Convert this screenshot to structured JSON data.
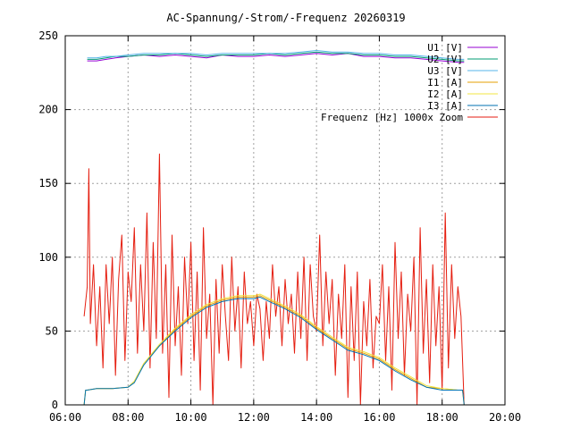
{
  "chart_data": {
    "type": "line",
    "title": "AC-Spannung/-Strom/-Frequenz 20260319",
    "xlabel": "",
    "ylabel": "",
    "xlim": [
      6,
      20
    ],
    "ylim": [
      0,
      250
    ],
    "grid": true,
    "legend_position": "top-right",
    "x_ticks": [
      {
        "value": 6,
        "label": "06:00"
      },
      {
        "value": 8,
        "label": "08:00"
      },
      {
        "value": 10,
        "label": "10:00"
      },
      {
        "value": 12,
        "label": "12:00"
      },
      {
        "value": 14,
        "label": "14:00"
      },
      {
        "value": 16,
        "label": "16:00"
      },
      {
        "value": 18,
        "label": "18:00"
      },
      {
        "value": 20,
        "label": "20:00"
      }
    ],
    "y_ticks": [
      {
        "value": 0,
        "label": "0"
      },
      {
        "value": 50,
        "label": "50"
      },
      {
        "value": 100,
        "label": "100"
      },
      {
        "value": 150,
        "label": "150"
      },
      {
        "value": 200,
        "label": "200"
      },
      {
        "value": 250,
        "label": "250"
      }
    ],
    "series": [
      {
        "name": "U1 [V]",
        "color": "#9400d3",
        "group": "voltage",
        "x": [
          6.7,
          7.0,
          7.3,
          7.6,
          8.0,
          8.5,
          9.0,
          9.5,
          10.0,
          10.5,
          11.0,
          11.5,
          12.0,
          12.5,
          13.0,
          13.5,
          14.0,
          14.5,
          15.0,
          15.5,
          16.0,
          16.5,
          17.0,
          17.5,
          18.0,
          18.5,
          18.7
        ],
        "values": [
          233,
          233,
          234,
          235,
          236,
          237,
          236,
          237,
          236,
          235,
          237,
          236,
          236,
          237,
          236,
          237,
          238,
          237,
          238,
          236,
          236,
          235,
          235,
          234,
          233,
          232,
          232
        ]
      },
      {
        "name": "U2 [V]",
        "color": "#009e73",
        "group": "voltage",
        "x": [
          6.7,
          7.0,
          7.3,
          7.6,
          8.0,
          8.5,
          9.0,
          9.5,
          10.0,
          10.5,
          11.0,
          11.5,
          12.0,
          12.5,
          13.0,
          13.5,
          14.0,
          14.5,
          15.0,
          15.5,
          16.0,
          16.5,
          17.0,
          17.5,
          18.0,
          18.5,
          18.7
        ],
        "values": [
          234,
          234,
          235,
          236,
          236,
          237,
          237,
          238,
          237,
          236,
          237,
          237,
          237,
          238,
          237,
          238,
          239,
          238,
          238,
          237,
          237,
          236,
          236,
          235,
          234,
          233,
          233
        ]
      },
      {
        "name": "U3 [V]",
        "color": "#56b4e9",
        "group": "voltage",
        "x": [
          6.7,
          7.0,
          7.3,
          7.6,
          8.0,
          8.5,
          9.0,
          9.5,
          10.0,
          10.5,
          11.0,
          11.5,
          12.0,
          12.5,
          13.0,
          13.5,
          14.0,
          14.5,
          15.0,
          15.5,
          16.0,
          16.5,
          17.0,
          17.5,
          18.0,
          18.5,
          18.7
        ],
        "values": [
          235,
          235,
          236,
          236,
          237,
          238,
          238,
          238,
          238,
          237,
          238,
          238,
          238,
          238,
          238,
          239,
          240,
          239,
          239,
          238,
          238,
          237,
          237,
          236,
          235,
          234,
          234
        ]
      },
      {
        "name": "I1 [A]",
        "color": "#e69f00",
        "group": "current",
        "x": [
          6.6,
          6.65,
          6.7,
          7.0,
          7.5,
          8.0,
          8.2,
          8.5,
          9.0,
          9.5,
          10.0,
          10.5,
          11.0,
          11.5,
          12.0,
          12.2,
          12.5,
          13.0,
          13.5,
          14.0,
          14.5,
          15.0,
          15.5,
          16.0,
          16.5,
          17.0,
          17.5,
          18.0,
          18.5,
          18.65,
          18.7
        ],
        "values": [
          0,
          10,
          10,
          11,
          11,
          12,
          16,
          28,
          40,
          51,
          60,
          67,
          71,
          73,
          73,
          74,
          71,
          66,
          60,
          52,
          45,
          38,
          35,
          31,
          24,
          18,
          12,
          11,
          10,
          10,
          0
        ]
      },
      {
        "name": "I2 [A]",
        "color": "#f0e442",
        "group": "current",
        "x": [
          6.6,
          6.65,
          6.7,
          7.0,
          7.5,
          8.0,
          8.2,
          8.5,
          9.0,
          9.5,
          10.0,
          10.5,
          11.0,
          11.5,
          12.0,
          12.2,
          12.5,
          13.0,
          13.5,
          14.0,
          14.5,
          15.0,
          15.5,
          16.0,
          16.5,
          17.0,
          17.5,
          18.0,
          18.5,
          18.65,
          18.7
        ],
        "values": [
          0,
          10,
          10,
          11,
          11,
          12,
          16,
          28,
          41,
          52,
          61,
          68,
          72,
          74,
          74,
          75,
          72,
          67,
          61,
          53,
          46,
          39,
          36,
          32,
          25,
          19,
          13,
          11,
          10,
          10,
          0
        ]
      },
      {
        "name": "I3 [A]",
        "color": "#0072b2",
        "group": "current",
        "x": [
          6.6,
          6.65,
          6.7,
          7.0,
          7.5,
          8.0,
          8.2,
          8.5,
          9.0,
          9.5,
          10.0,
          10.5,
          11.0,
          11.5,
          12.0,
          12.2,
          12.5,
          13.0,
          13.5,
          14.0,
          14.5,
          15.0,
          15.5,
          16.0,
          16.5,
          17.0,
          17.5,
          18.0,
          18.5,
          18.65,
          18.7
        ],
        "values": [
          0,
          10,
          10,
          11,
          11,
          12,
          15,
          27,
          40,
          50,
          59,
          66,
          70,
          72,
          72,
          73,
          70,
          65,
          59,
          51,
          44,
          37,
          34,
          30,
          23,
          17,
          12,
          10,
          10,
          10,
          0
        ]
      },
      {
        "name": "Frequenz [Hz] 1000x Zoom",
        "color": "#e51e10",
        "group": "frequency",
        "x": [
          6.6,
          6.7,
          6.75,
          6.8,
          6.9,
          7.0,
          7.1,
          7.2,
          7.3,
          7.4,
          7.5,
          7.6,
          7.7,
          7.8,
          7.9,
          8.0,
          8.1,
          8.2,
          8.3,
          8.4,
          8.5,
          8.6,
          8.7,
          8.8,
          8.9,
          9.0,
          9.1,
          9.2,
          9.3,
          9.4,
          9.5,
          9.6,
          9.7,
          9.8,
          9.9,
          10.0,
          10.1,
          10.2,
          10.3,
          10.4,
          10.5,
          10.6,
          10.7,
          10.8,
          10.9,
          11.0,
          11.1,
          11.2,
          11.3,
          11.4,
          11.5,
          11.6,
          11.7,
          11.8,
          11.9,
          12.0,
          12.1,
          12.2,
          12.3,
          12.4,
          12.5,
          12.6,
          12.7,
          12.8,
          12.9,
          13.0,
          13.1,
          13.2,
          13.3,
          13.4,
          13.5,
          13.6,
          13.7,
          13.8,
          13.9,
          14.0,
          14.1,
          14.2,
          14.3,
          14.4,
          14.5,
          14.6,
          14.7,
          14.8,
          14.9,
          15.0,
          15.1,
          15.2,
          15.3,
          15.4,
          15.5,
          15.6,
          15.7,
          15.8,
          15.9,
          16.0,
          16.1,
          16.2,
          16.3,
          16.4,
          16.5,
          16.6,
          16.7,
          16.8,
          16.9,
          17.0,
          17.1,
          17.2,
          17.3,
          17.4,
          17.5,
          17.6,
          17.7,
          17.8,
          17.9,
          18.0,
          18.1,
          18.2,
          18.3,
          18.4,
          18.5,
          18.6,
          18.7
        ],
        "values": [
          60,
          80,
          160,
          55,
          95,
          40,
          80,
          25,
          95,
          55,
          100,
          20,
          85,
          115,
          30,
          90,
          70,
          120,
          35,
          95,
          50,
          130,
          25,
          110,
          45,
          170,
          35,
          95,
          5,
          115,
          40,
          80,
          20,
          100,
          55,
          110,
          30,
          90,
          10,
          120,
          45,
          75,
          0,
          85,
          35,
          95,
          60,
          30,
          100,
          50,
          80,
          25,
          90,
          55,
          70,
          40,
          75,
          65,
          30,
          70,
          45,
          95,
          60,
          80,
          40,
          85,
          55,
          75,
          35,
          90,
          45,
          100,
          30,
          95,
          60,
          50,
          115,
          40,
          90,
          55,
          85,
          20,
          75,
          45,
          95,
          5,
          80,
          30,
          90,
          0,
          70,
          40,
          85,
          25,
          60,
          55,
          95,
          30,
          80,
          10,
          110,
          45,
          90,
          20,
          75,
          50,
          100,
          0,
          120,
          35,
          85,
          15,
          95,
          40,
          80,
          10,
          130,
          25,
          95,
          45,
          80,
          60,
          0
        ]
      }
    ]
  }
}
